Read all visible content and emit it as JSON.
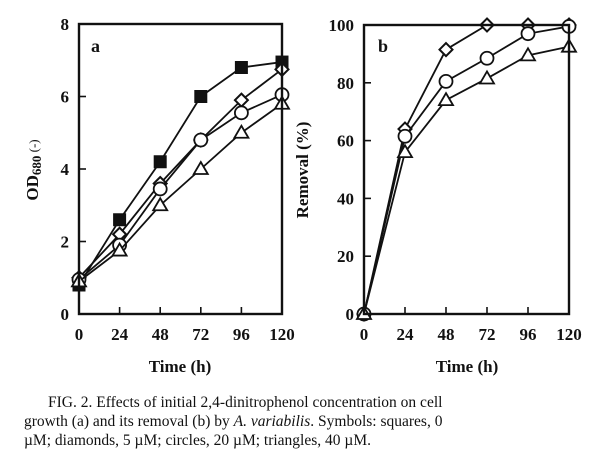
{
  "chart_data": [
    {
      "type": "line",
      "panel_label": "a",
      "title": "",
      "xlabel": "Time (h)",
      "ylabel_main": "OD",
      "ylabel_sub": "680",
      "ylabel_suffix": " (-)",
      "xlim": [
        0,
        120
      ],
      "ylim": [
        0,
        8
      ],
      "x": [
        0,
        24,
        48,
        72,
        96,
        120
      ],
      "xticks": [
        "0",
        "24",
        "48",
        "72",
        "96",
        "120"
      ],
      "yticks": [
        "0",
        "2",
        "4",
        "6",
        "8"
      ],
      "ytick_values": [
        0,
        2,
        4,
        6,
        8
      ],
      "grid": false,
      "series": [
        {
          "name": "squares, 0 µM",
          "marker": "square-filled",
          "values": [
            0.8,
            2.6,
            4.2,
            6.0,
            6.8,
            6.95
          ]
        },
        {
          "name": "diamonds, 5 µM",
          "marker": "diamond-open",
          "values": [
            1.0,
            2.2,
            3.6,
            4.8,
            5.9,
            6.75
          ]
        },
        {
          "name": "circles, 20 µM",
          "marker": "circle-open",
          "values": [
            0.95,
            1.9,
            3.45,
            4.8,
            5.55,
            6.05
          ]
        },
        {
          "name": "triangles, 40 µM",
          "marker": "triangle-open",
          "values": [
            0.9,
            1.75,
            3.0,
            4.0,
            5.0,
            5.8
          ]
        }
      ]
    },
    {
      "type": "line",
      "panel_label": "b",
      "title": "",
      "xlabel": "Time (h)",
      "ylabel": "Removal (%)",
      "xlim": [
        0,
        120
      ],
      "ylim": [
        0,
        100
      ],
      "x": [
        0,
        24,
        48,
        72,
        96,
        120
      ],
      "xticks": [
        "0",
        "24",
        "48",
        "72",
        "96",
        "120"
      ],
      "yticks": [
        "0",
        "20",
        "40",
        "60",
        "80",
        "100"
      ],
      "ytick_values": [
        0,
        20,
        40,
        60,
        80,
        100
      ],
      "grid": false,
      "series": [
        {
          "name": "diamonds, 5 µM",
          "marker": "diamond-open",
          "values": [
            0,
            64,
            91.5,
            100,
            100,
            100
          ]
        },
        {
          "name": "circles, 20 µM",
          "marker": "circle-open",
          "values": [
            0,
            61.5,
            80.5,
            88.5,
            97,
            99.5
          ]
        },
        {
          "name": "triangles, 40 µM",
          "marker": "triangle-open",
          "values": [
            0,
            56,
            74,
            81.5,
            89.5,
            92.5
          ]
        }
      ]
    }
  ],
  "caption": {
    "line1": "FIG. 2.  Effects of initial 2,4-dinitrophenol concentration on cell",
    "line2_pre": "growth (a) and its removal (b) by ",
    "line2_species": "A. variabilis",
    "line2_post": ". Symbols: squares, 0",
    "line3": "µM; diamonds, 5 µM; circles, 20 µM; triangles, 40 µM."
  }
}
